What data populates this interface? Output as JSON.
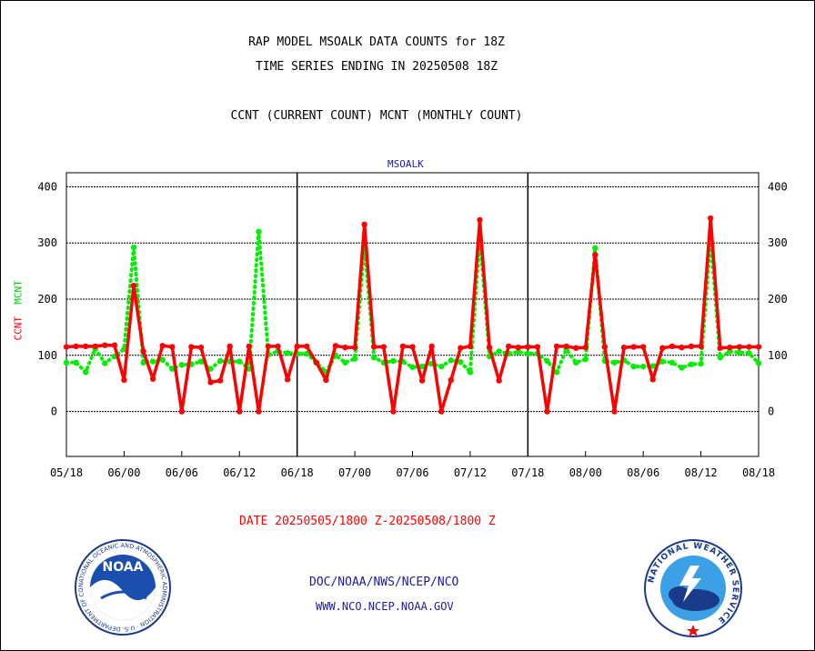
{
  "title_line1": "RAP MODEL MSOALK DATA COUNTS for 18Z",
  "title_line2": "TIME SERIES ENDING IN 20250508 18Z",
  "title_line3": "CCNT (CURRENT COUNT) MCNT (MONTHLY COUNT)",
  "date_range": "DATE 20250505/1800 Z-20250508/1800 Z",
  "credit_line1": "DOC/NOAA/NWS/NCEP/NCO",
  "credit_line2": "WWW.NCO.NCEP.NOAA.GOV",
  "noaa_logo_text": "NOAA",
  "noaa_ring_text": "NATIONAL OCEANIC AND ATMOSPHERIC ADMINISTRATION · U.S. DEPARTMENT OF COMMERCE",
  "nws_ring_text": "NATIONAL WEATHER SERVICE",
  "colors": {
    "ccnt": "#ff0000",
    "mcnt": "#00ee00",
    "subtitle": "#1a1aa6",
    "credits": "#1a1aa6"
  },
  "chart_data": {
    "type": "line",
    "title": "MSOALK",
    "ylabel_parts": [
      "CCNT",
      "MCNT"
    ],
    "ylim": [
      -80,
      425
    ],
    "yticks": [
      0,
      100,
      200,
      300,
      400
    ],
    "grid": "horizontal dotted at each y tick",
    "panels": [
      {
        "x_ticks": [
          "05/18",
          "06/00",
          "06/06",
          "06/12",
          "06/18"
        ]
      },
      {
        "x_ticks": [
          "06/18",
          "07/00",
          "07/06",
          "07/12",
          "07/18"
        ]
      },
      {
        "x_ticks": [
          "07/18",
          "08/00",
          "08/06",
          "08/12",
          "08/18"
        ]
      }
    ],
    "x_per_panel": 24,
    "series": [
      {
        "name": "CCNT",
        "style": "solid",
        "color": "#ff0000",
        "values": [
          115,
          116,
          116,
          116,
          118,
          118,
          56,
          224,
          107,
          58,
          117,
          115,
          0,
          115,
          114,
          52,
          55,
          116,
          0,
          116,
          0,
          116,
          116,
          57,
          116,
          116,
          87,
          56,
          117,
          114,
          114,
          333,
          115,
          115,
          0,
          116,
          115,
          55,
          116,
          0,
          56,
          113,
          116,
          341,
          114,
          55,
          116,
          114,
          115,
          115,
          0,
          116,
          116,
          113,
          114,
          279,
          115,
          0,
          114,
          115,
          115,
          57,
          113,
          116,
          114,
          116,
          116,
          344,
          113,
          114,
          115,
          115,
          115
        ]
      },
      {
        "name": "MCNT",
        "style": "dotted",
        "color": "#00ee00",
        "values": [
          87,
          87,
          70,
          112,
          86,
          98,
          111,
          292,
          87,
          89,
          92,
          76,
          83,
          84,
          89,
          76,
          90,
          89,
          89,
          76,
          320,
          101,
          107,
          104,
          103,
          103,
          87,
          70,
          100,
          87,
          94,
          296,
          96,
          87,
          90,
          89,
          79,
          80,
          85,
          80,
          91,
          88,
          70,
          314,
          98,
          107,
          103,
          106,
          103,
          103,
          90,
          70,
          110,
          87,
          93,
          291,
          90,
          87,
          91,
          80,
          80,
          81,
          89,
          87,
          78,
          84,
          85,
          311,
          96,
          107,
          105,
          104,
          86
        ]
      }
    ]
  }
}
